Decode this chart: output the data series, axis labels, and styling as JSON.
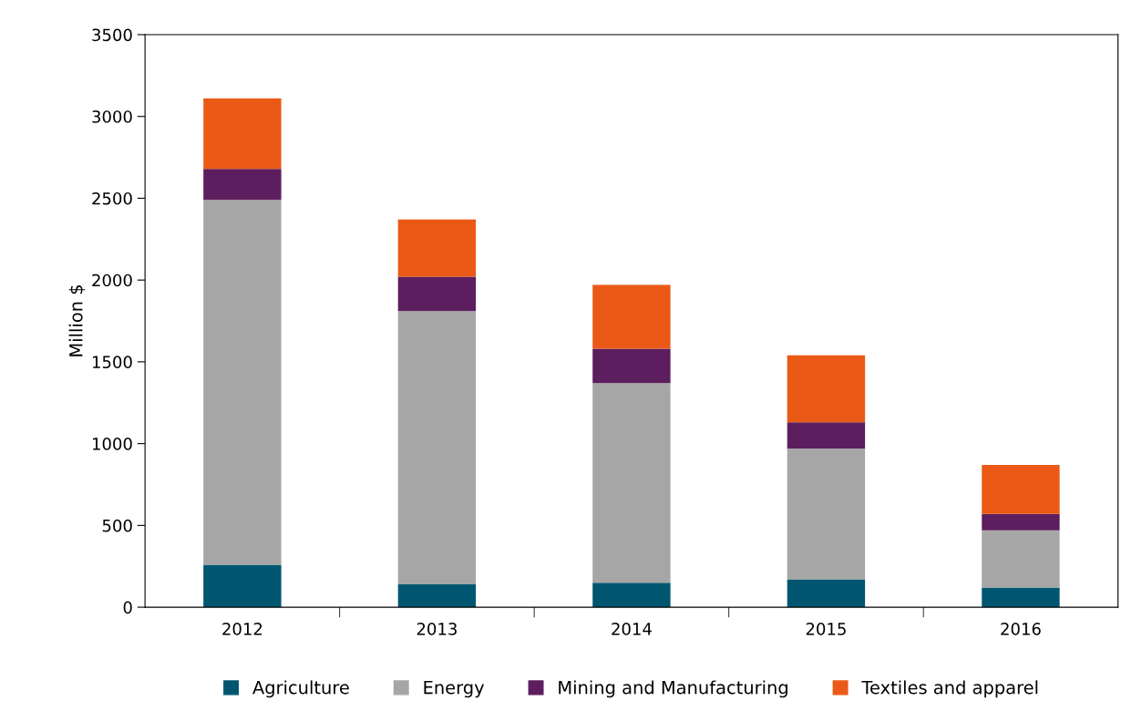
{
  "chart_data": {
    "type": "bar",
    "ylabel": "Million $",
    "stacked": true,
    "categories": [
      "2012",
      "2013",
      "2014",
      "2015",
      "2016"
    ],
    "series": [
      {
        "name": "Agriculture",
        "color": "#005670",
        "values": [
          260,
          140,
          150,
          170,
          120
        ]
      },
      {
        "name": "Energy",
        "color": "#a6a6a6",
        "values": [
          2230,
          1670,
          1220,
          800,
          350
        ]
      },
      {
        "name": "Mining and Manufacturing",
        "color": "#5c1e5e",
        "values": [
          190,
          210,
          210,
          160,
          100
        ]
      },
      {
        "name": "Textiles and apparel",
        "color": "#ea5916",
        "values": [
          430,
          350,
          390,
          410,
          300
        ]
      }
    ],
    "ylim": [
      0,
      3500
    ],
    "yticks": [
      0,
      500,
      1000,
      1500,
      2000,
      2500,
      3000,
      3500
    ],
    "grid": false,
    "legend": "bottom"
  }
}
